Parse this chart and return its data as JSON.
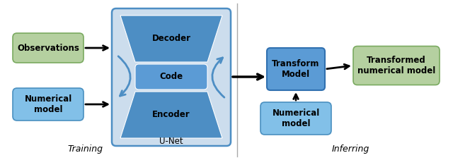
{
  "fig_width": 6.4,
  "fig_height": 2.27,
  "dpi": 100,
  "bg_color": "#ffffff",
  "green_color": "#b5d0a0",
  "green_edge": "#7aaa60",
  "light_blue_bg": "#ccdded",
  "medium_blue": "#4d8ec4",
  "blue_box": "#5b9bd5",
  "light_blue_box": "#82c0e8",
  "text_color": "#000000",
  "training_label": "Training",
  "inferring_label": "Inferring",
  "observations_label": "Observations",
  "numerical_model_label1": "Numerical\nmodel",
  "numerical_model_label2": "Numerical\nmodel",
  "decoder_label": "Decoder",
  "code_label": "Code",
  "encoder_label": "Encoder",
  "unet_label": "U-Net",
  "transform_label": "Transform\nModel",
  "transformed_label": "Transformed\nnumerical model"
}
